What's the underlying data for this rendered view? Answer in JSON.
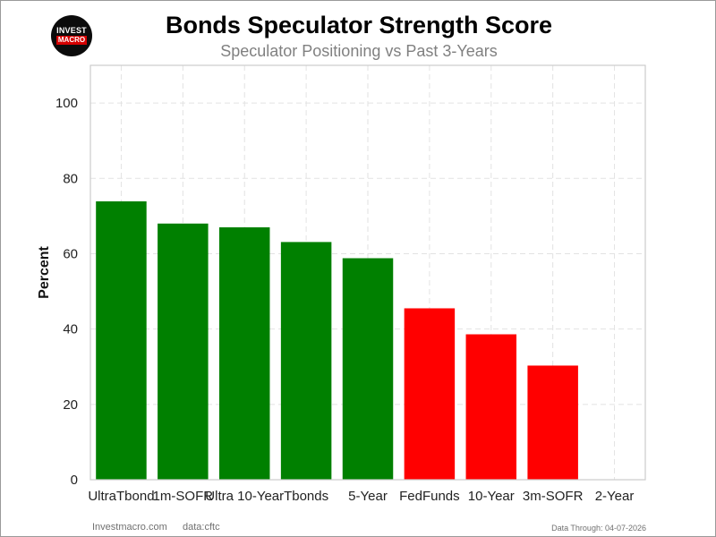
{
  "logo": {
    "line1": "INVEST",
    "line2": "MACRO"
  },
  "footer": {
    "site": "Investmacro.com",
    "source": "data:cftc",
    "through": "Data Through: 04-07-2026"
  },
  "colors": {
    "positive": "#008000",
    "negative": "#ff0000"
  },
  "chart_data": {
    "type": "bar",
    "title": "Bonds Speculator Strength Score",
    "subtitle": "Speculator Positioning vs Past 3-Years",
    "xlabel": "",
    "ylabel": "Percent",
    "ylim": [
      0,
      110
    ],
    "yticks": [
      0,
      20,
      40,
      60,
      80,
      100
    ],
    "grid": true,
    "categories": [
      "UltraTbond",
      "1m-SOFR",
      "Ultra 10-Year",
      "Tbonds",
      "5-Year",
      "FedFunds",
      "10-Year",
      "3m-SOFR",
      "2-Year"
    ],
    "values": [
      73.9,
      68.0,
      67.0,
      63.1,
      58.8,
      45.5,
      38.6,
      30.3,
      0
    ],
    "bar_colors": [
      "green",
      "green",
      "green",
      "green",
      "green",
      "red",
      "red",
      "red",
      "red"
    ]
  }
}
